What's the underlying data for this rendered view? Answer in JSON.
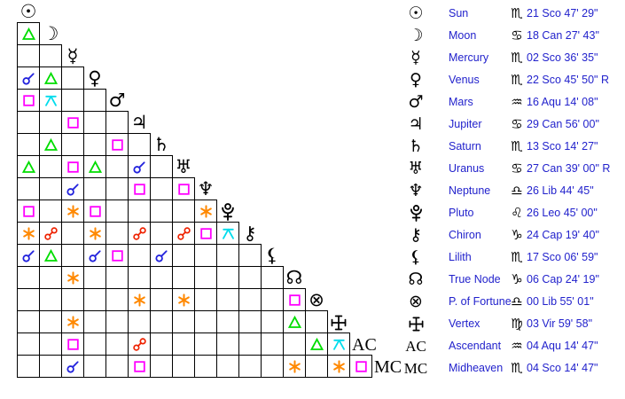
{
  "chart_data": {
    "type": "table",
    "description": "Astrological aspectarian (triangular aspect grid) with planetary positions table",
    "colors": {
      "background": "#ffffff",
      "grid_line": "#000000",
      "glyph_black": "#000000",
      "text_blue": "#2222cc"
    },
    "aspect_types": {
      "conjunction": {
        "label": "conjunction",
        "color": "#2222dd"
      },
      "sextile": {
        "label": "sextile",
        "color": "#ff8800"
      },
      "square": {
        "label": "square",
        "color": "#ff00ff"
      },
      "trine": {
        "label": "trine",
        "color": "#00dd00"
      },
      "opposition": {
        "label": "opposition",
        "color": "#ee2200"
      },
      "quincunx": {
        "label": "quincunx",
        "color": "#00dcec"
      }
    },
    "planets": [
      {
        "id": "sun",
        "glyph": "☉",
        "glyph_svg": "",
        "name": "Sun",
        "sign": "Scorpio",
        "sign_glyph": "♏",
        "position": "21 Sco 47' 29\""
      },
      {
        "id": "moon",
        "glyph": "☽",
        "glyph_svg": "",
        "name": "Moon",
        "sign": "Cancer",
        "sign_glyph": "♋",
        "position": "18 Can 27' 43\""
      },
      {
        "id": "mercury",
        "glyph": "☿",
        "glyph_svg": "",
        "name": "Mercury",
        "sign": "Scorpio",
        "sign_glyph": "♏",
        "position": "02 Sco 36' 35\""
      },
      {
        "id": "venus",
        "glyph": "♀",
        "glyph_svg": "",
        "name": "Venus",
        "sign": "Scorpio",
        "sign_glyph": "♏",
        "position": "22 Sco 45' 50\" R"
      },
      {
        "id": "mars",
        "glyph": "♂",
        "glyph_svg": "",
        "name": "Mars",
        "sign": "Aquarius",
        "sign_glyph": "♒",
        "position": "16 Aqu 14' 08\""
      },
      {
        "id": "jupiter",
        "glyph": "♃",
        "glyph_svg": "",
        "name": "Jupiter",
        "sign": "Cancer",
        "sign_glyph": "♋",
        "position": "29 Can 56' 00\""
      },
      {
        "id": "saturn",
        "glyph": "♄",
        "glyph_svg": "",
        "name": "Saturn",
        "sign": "Scorpio",
        "sign_glyph": "♏",
        "position": "13 Sco 14' 27\""
      },
      {
        "id": "uranus",
        "glyph": "♅",
        "glyph_svg": "",
        "name": "Uranus",
        "sign": "Cancer",
        "sign_glyph": "♋",
        "position": "27 Can 39' 00\" R"
      },
      {
        "id": "neptune",
        "glyph": "♆",
        "glyph_svg": "",
        "name": "Neptune",
        "sign": "Libra",
        "sign_glyph": "♎",
        "position": "26 Lib 44' 45\""
      },
      {
        "id": "pluto",
        "glyph": "",
        "glyph_svg": "pluto",
        "name": "Pluto",
        "sign": "Leo",
        "sign_glyph": "♌",
        "position": "26 Leo 45' 00\""
      },
      {
        "id": "chiron",
        "glyph": "⚷",
        "glyph_svg": "",
        "name": "Chiron",
        "sign": "Capricorn",
        "sign_glyph": "♑",
        "position": "24 Cap 19' 40\""
      },
      {
        "id": "lilith",
        "glyph": "⚸",
        "glyph_svg": "",
        "name": "Lilith",
        "sign": "Scorpio",
        "sign_glyph": "♏",
        "position": "17 Sco 06' 59\""
      },
      {
        "id": "true-node",
        "glyph": "☊",
        "glyph_svg": "",
        "name": "True Node",
        "sign": "Capricorn",
        "sign_glyph": "♑",
        "position": "06 Cap 24' 19\""
      },
      {
        "id": "fortune",
        "glyph": "⊗",
        "glyph_svg": "",
        "name": "P. of Fortune",
        "sign": "Libra",
        "sign_glyph": "♎",
        "position": "00 Lib 55' 01\""
      },
      {
        "id": "vertex",
        "glyph": "",
        "glyph_svg": "vertex",
        "name": "Vertex",
        "sign": "Virgo",
        "sign_glyph": "♍",
        "position": "03 Vir 59' 58\""
      },
      {
        "id": "ac",
        "glyph": "AC",
        "glyph_svg": "",
        "name": "Ascendant",
        "sign": "Aquarius",
        "sign_glyph": "♒",
        "position": "04 Aqu 14' 47\""
      },
      {
        "id": "mc",
        "glyph": "MC",
        "glyph_svg": "",
        "name": "Midheaven",
        "sign": "Scorpio",
        "sign_glyph": "♏",
        "position": "04 Sco 14' 47\""
      }
    ],
    "aspect_matrix": [
      {
        "planet": "sun",
        "cells": []
      },
      {
        "planet": "moon",
        "cells": [
          "trine"
        ]
      },
      {
        "planet": "mercury",
        "cells": [
          "",
          ""
        ]
      },
      {
        "planet": "venus",
        "cells": [
          "conjunction",
          "trine",
          ""
        ]
      },
      {
        "planet": "mars",
        "cells": [
          "square",
          "quincunx",
          "",
          ""
        ]
      },
      {
        "planet": "jupiter",
        "cells": [
          "",
          "",
          "square",
          "",
          ""
        ]
      },
      {
        "planet": "saturn",
        "cells": [
          "",
          "trine",
          "",
          "",
          "square",
          ""
        ]
      },
      {
        "planet": "uranus",
        "cells": [
          "trine",
          "",
          "square",
          "trine",
          "",
          "conjunction",
          ""
        ]
      },
      {
        "planet": "neptune",
        "cells": [
          "",
          "",
          "conjunction",
          "",
          "",
          "square",
          "",
          "square"
        ]
      },
      {
        "planet": "pluto",
        "cells": [
          "square",
          "",
          "sextile",
          "square",
          "",
          "",
          "",
          "",
          "sextile"
        ]
      },
      {
        "planet": "chiron",
        "cells": [
          "sextile",
          "opposition",
          "",
          "sextile",
          "",
          "opposition",
          "",
          "opposition",
          "square",
          "quincunx"
        ]
      },
      {
        "planet": "lilith",
        "cells": [
          "conjunction",
          "trine",
          "",
          "conjunction",
          "square",
          "",
          "conjunction",
          "",
          "",
          "",
          ""
        ]
      },
      {
        "planet": "true-node",
        "cells": [
          "",
          "",
          "sextile",
          "",
          "",
          "",
          "",
          "",
          "",
          "",
          "",
          ""
        ]
      },
      {
        "planet": "fortune",
        "cells": [
          "",
          "",
          "",
          "",
          "",
          "sextile",
          "",
          "sextile",
          "",
          "",
          "",
          "",
          "square"
        ]
      },
      {
        "planet": "vertex",
        "cells": [
          "",
          "",
          "sextile",
          "",
          "",
          "",
          "",
          "",
          "",
          "",
          "",
          "",
          "trine",
          ""
        ]
      },
      {
        "planet": "ac",
        "cells": [
          "",
          "",
          "square",
          "",
          "",
          "opposition",
          "",
          "",
          "",
          "",
          "",
          "",
          "",
          "trine",
          "quincunx"
        ]
      },
      {
        "planet": "mc",
        "cells": [
          "",
          "",
          "conjunction",
          "",
          "",
          "square",
          "",
          "",
          "",
          "",
          "",
          "",
          "sextile",
          "",
          "sextile",
          "square"
        ]
      }
    ]
  }
}
